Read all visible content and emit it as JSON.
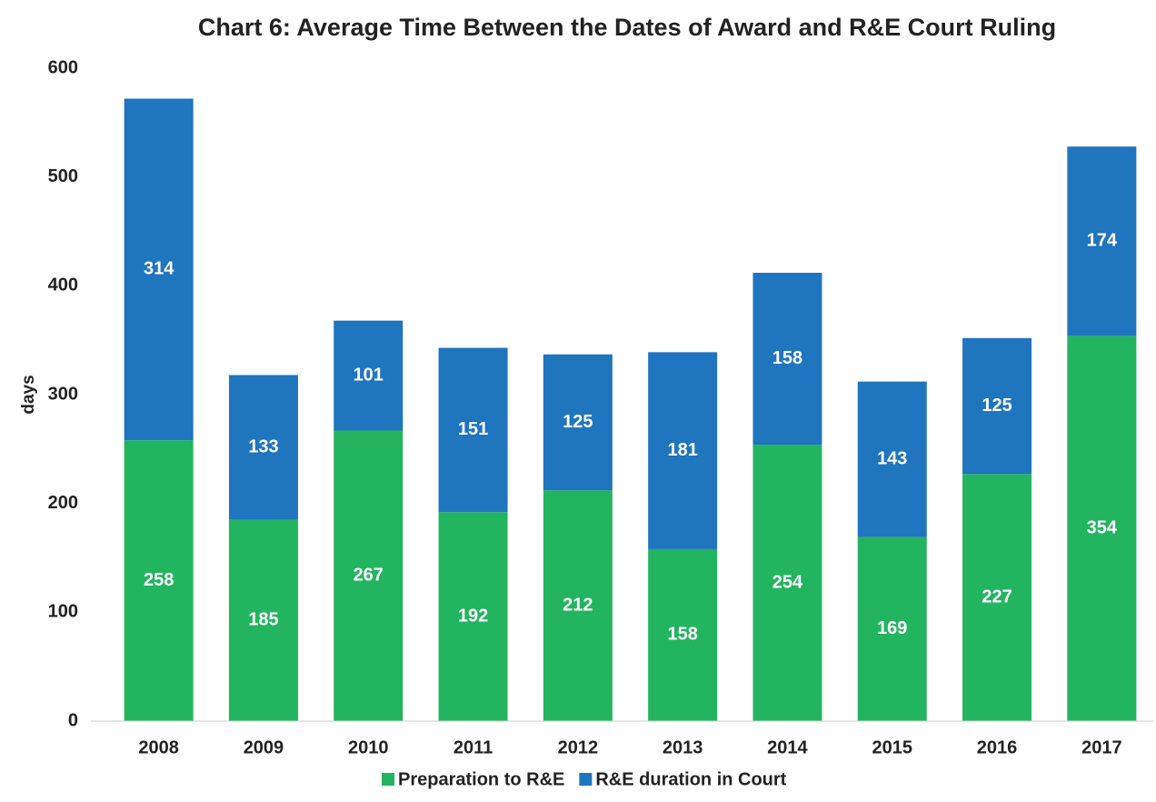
{
  "chart_data": {
    "type": "bar",
    "stacked": true,
    "title": "Chart 6: Average Time Between the Dates of Award and R&E Court Ruling",
    "ylabel": "days",
    "categories": [
      "2008",
      "2009",
      "2010",
      "2011",
      "2012",
      "2013",
      "2014",
      "2015",
      "2016",
      "2017"
    ],
    "series": [
      {
        "name": "Preparation to R&E",
        "color": "#23b45f",
        "values": [
          258,
          185,
          267,
          192,
          212,
          158,
          254,
          169,
          227,
          354
        ]
      },
      {
        "name": "R&E duration in Court",
        "color": "#1f75be",
        "values": [
          314,
          133,
          101,
          151,
          125,
          181,
          158,
          143,
          125,
          174
        ]
      }
    ],
    "ylim": [
      0,
      600
    ],
    "yticks": [
      0,
      100,
      200,
      300,
      400,
      500,
      600
    ],
    "grid": false,
    "legend": "bottom"
  }
}
